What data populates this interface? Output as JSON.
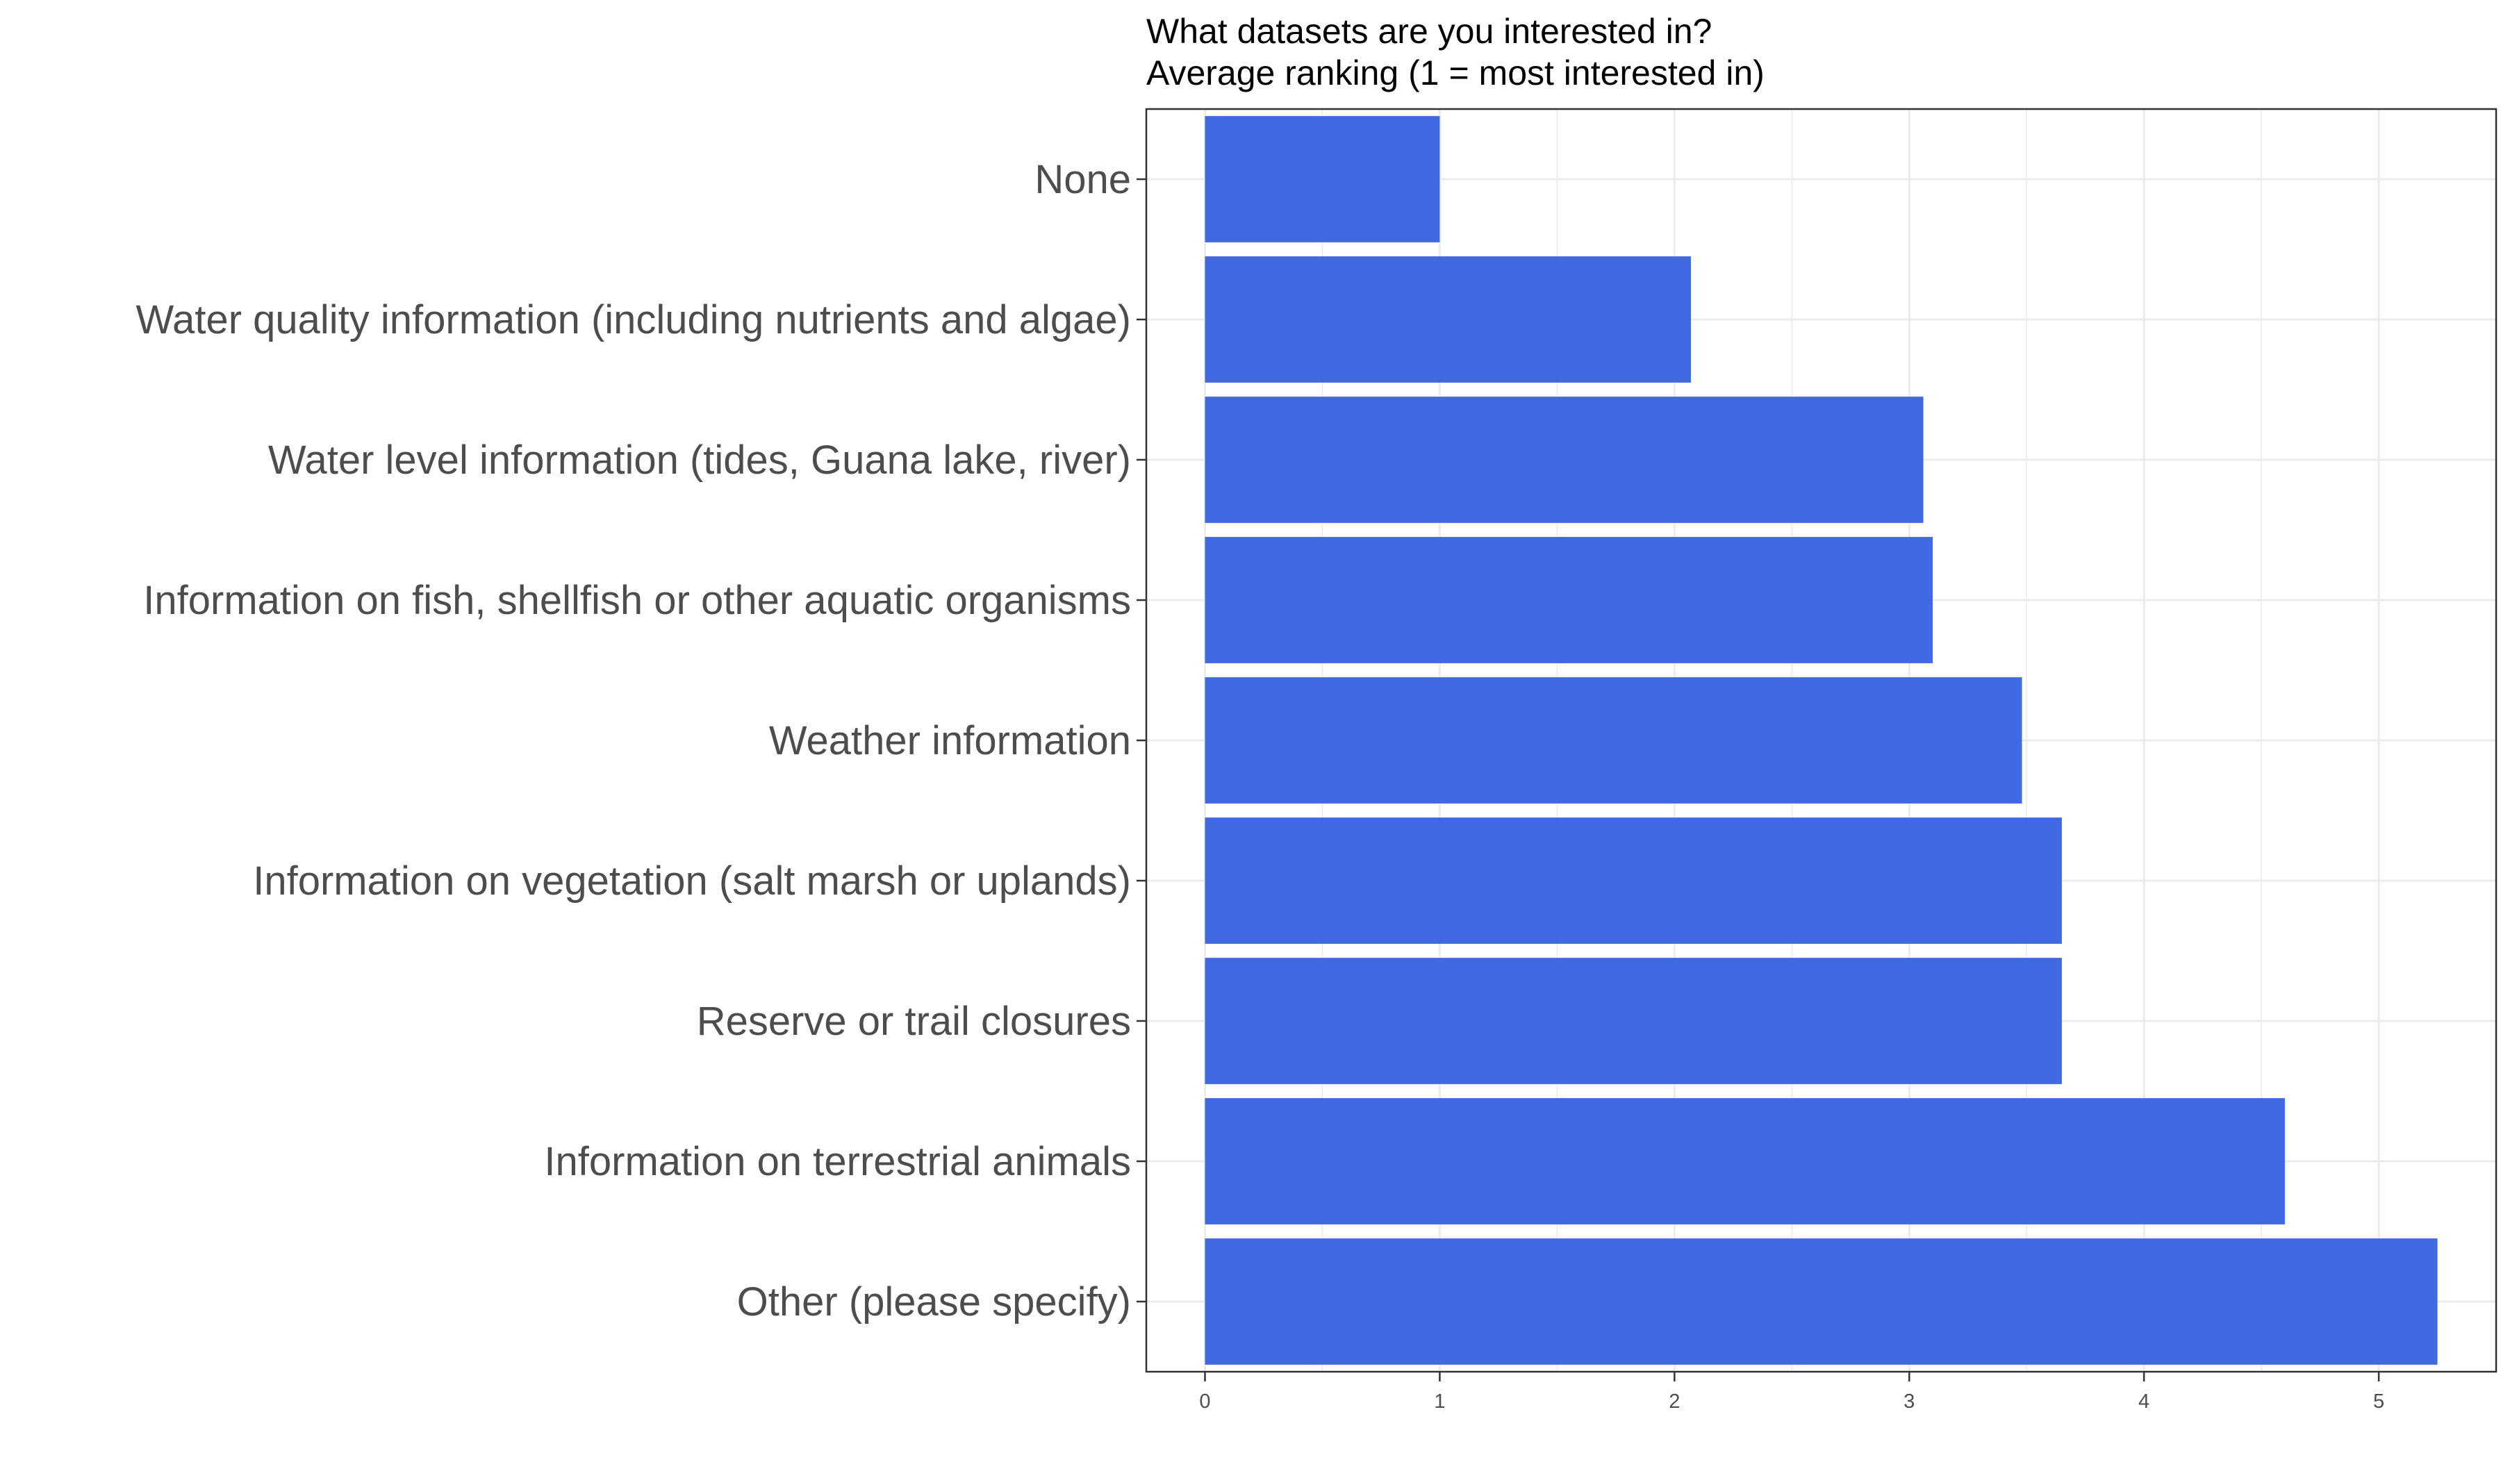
{
  "chart_data": {
    "type": "bar",
    "orientation": "horizontal",
    "title": "What datasets are you interested in?",
    "subtitle": "Average ranking (1 = most interested in)",
    "xlabel": "",
    "ylabel": "",
    "categories": [
      "None",
      "Water quality information (including nutrients and algae)",
      "Water level information (tides, Guana lake, river)",
      "Information on fish, shellfish or other aquatic organisms",
      "Weather information",
      "Information on vegetation (salt marsh or uplands)",
      "Reserve or trail closures",
      "Information on terrestrial animals",
      "Other (please specify)"
    ],
    "values": [
      1.0,
      2.07,
      3.06,
      3.1,
      3.48,
      3.65,
      3.65,
      4.6,
      5.25
    ],
    "xlim": [
      -0.25,
      5.5
    ],
    "x_ticks": [
      "0",
      "1",
      "2",
      "3",
      "4",
      "5"
    ],
    "grid": true,
    "legend": "none",
    "bar_color": "#4169E1"
  }
}
